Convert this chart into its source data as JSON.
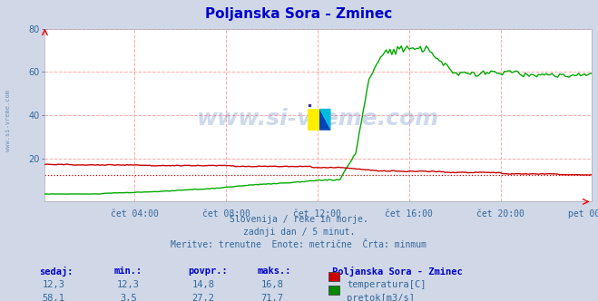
{
  "title": "Poljanska Sora - Zminec",
  "title_color": "#0000cc",
  "bg_color": "#d0d8e8",
  "plot_bg_color": "#ffffff",
  "grid_color": "#ffaaaa",
  "watermark_text": "www.si-vreme.com",
  "left_text": "www.si-vreme.com",
  "subtitle_lines": [
    "Slovenija / reke in morje.",
    "zadnji dan / 5 minut.",
    "Meritve: trenutne  Enote: metrične  Črta: minmum"
  ],
  "footer_headers": [
    "sedaj:",
    "min.:",
    "povpr.:",
    "maks.:"
  ],
  "footer_label": "Poljanska Sora - Zminec",
  "footer_rows": [
    {
      "values": [
        "12,3",
        "12,3",
        "14,8",
        "16,8"
      ],
      "color": "#cc0000",
      "legend": "temperatura[C]"
    },
    {
      "values": [
        "58,1",
        "3,5",
        "27,2",
        "71,7"
      ],
      "color": "#008800",
      "legend": "pretok[m3/s]"
    }
  ],
  "x_tick_labels": [
    "čet 04:00",
    "čet 08:00",
    "čet 12:00",
    "čet 16:00",
    "čet 20:00",
    "pet 00:00"
  ],
  "x_tick_fracs": [
    0.1667,
    0.3333,
    0.5,
    0.6667,
    0.8333,
    1.0
  ],
  "ylim": [
    0,
    80
  ],
  "y_ticks": [
    20,
    40,
    60,
    80
  ],
  "num_points": 288,
  "temp_color": "#cc0000",
  "flow_color": "#00aa00",
  "temp_min_line_y": 12.3,
  "flow_min_line_y": 3.5
}
